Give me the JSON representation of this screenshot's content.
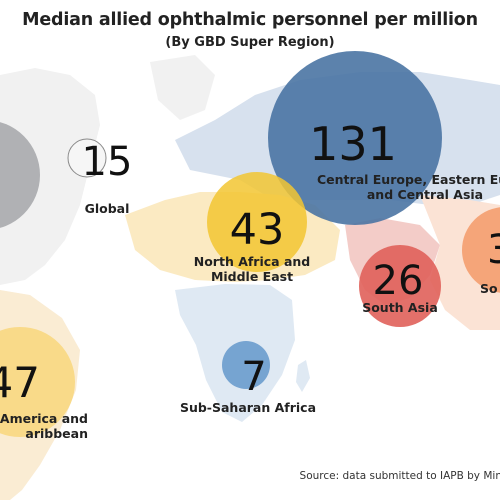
{
  "title": "Median allied ophthalmic personnel per million",
  "subtitle": "(By GBD Super Region)",
  "source": "Source: data submitted to IAPB by Min",
  "chart_data": {
    "type": "bubble-map",
    "unit": "allied ophthalmic personnel per million",
    "regions": [
      {
        "label_lines": [],
        "value_text": "",
        "value": null,
        "color": "#a8aaad"
      },
      {
        "label_lines": [
          "Global"
        ],
        "value_text": "15",
        "value": 15,
        "color": "#d6d6d6"
      },
      {
        "label_lines": [
          "Central Europe, Eastern Eu",
          "and Central Asia"
        ],
        "value_text": "131",
        "value": 131,
        "color": "#4a74a3"
      },
      {
        "label_lines": [
          "North Africa and",
          "Middle East"
        ],
        "value_text": "43",
        "value": 43,
        "color": "#f2c531"
      },
      {
        "label_lines": [
          "South Asia"
        ],
        "value_text": "26",
        "value": 26,
        "color": "#e0605a"
      },
      {
        "label_lines": [
          "So"
        ],
        "value_text": "3",
        "value": null,
        "color": "#f39a68"
      },
      {
        "label_lines": [
          "America and",
          "aribbean"
        ],
        "value_text": "47",
        "value": 47,
        "color": "#f8d77b"
      },
      {
        "label_lines": [
          "Sub-Saharan Africa"
        ],
        "value_text": "7",
        "value": 7,
        "color": "#6a9ccd"
      }
    ]
  }
}
